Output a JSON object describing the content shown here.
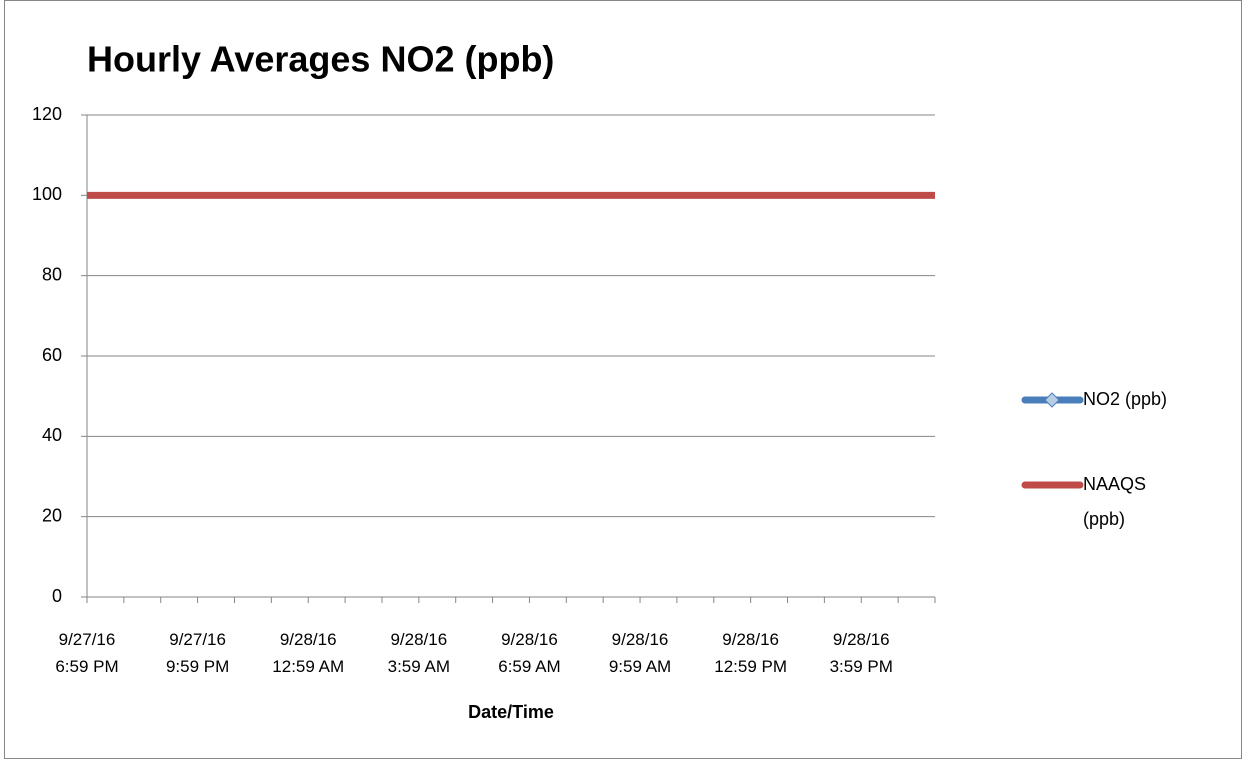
{
  "chart_data": {
    "type": "line",
    "title": "Hourly Averages NO2 (ppb)",
    "x_label": "Date/Time",
    "categories": [
      "9/27/16 6:59 PM",
      null,
      null,
      "9/27/16 9:59 PM",
      null,
      null,
      "9/28/16 12:59 AM",
      null,
      null,
      "9/28/16 3:59 AM",
      null,
      null,
      "9/28/16 6:59 AM",
      null,
      null,
      "9/28/16 9:59 AM",
      null,
      null,
      "9/28/16 12:59 PM",
      null,
      null,
      "9/28/16 3:59 PM",
      null,
      null
    ],
    "series": [
      {
        "name": "NO2 (ppb)",
        "color": "#4a7ebb",
        "values": [
          null,
          null,
          null,
          null,
          null,
          null,
          null,
          null,
          null,
          null,
          null,
          null,
          null,
          null,
          null,
          null,
          null,
          null,
          null,
          null,
          null,
          null,
          null,
          null
        ]
      },
      {
        "name": "NAAQS (ppb)",
        "color": "#be4b48",
        "values": [
          100,
          100,
          100,
          100,
          100,
          100,
          100,
          100,
          100,
          100,
          100,
          100,
          100,
          100,
          100,
          100,
          100,
          100,
          100,
          100,
          100,
          100,
          100,
          100
        ]
      }
    ],
    "ylim": [
      0,
      120
    ],
    "yticks": [
      0,
      20,
      40,
      60,
      80,
      100,
      120
    ],
    "grid": true,
    "legend": "right"
  }
}
